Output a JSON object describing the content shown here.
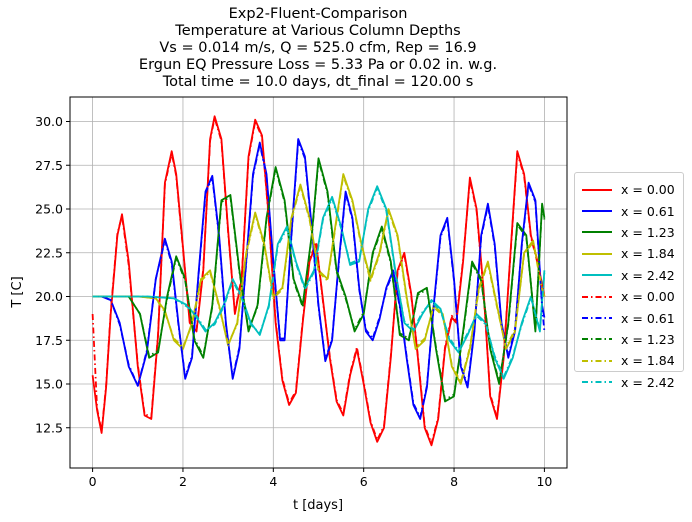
{
  "chart_data": {
    "type": "line",
    "title_lines": [
      "Exp2-Fluent-Comparison",
      "Temperature at Various Column Depths",
      "Vs = 0.014 m/s, Q = 525.0 cfm, Rep = 16.9",
      "Ergun EQ Pressure Loss = 5.33 Pa or 0.02 in. w.g.",
      "Total time = 10.0 days, dt_final = 120.00 s"
    ],
    "xlabel": "t [days]",
    "ylabel": "T [C]",
    "xlim": [
      -0.5,
      10.5
    ],
    "ylim": [
      10.2,
      31.4
    ],
    "xticks": [
      0,
      2,
      4,
      6,
      8,
      10
    ],
    "xtick_labels": [
      "0",
      "2",
      "4",
      "6",
      "8",
      "10"
    ],
    "yticks": [
      12.5,
      15.0,
      17.5,
      20.0,
      22.5,
      25.0,
      27.5,
      30.0
    ],
    "ytick_labels": [
      "12.5",
      "15.0",
      "17.5",
      "20.0",
      "22.5",
      "25.0",
      "27.5",
      "30.0"
    ],
    "grid": true,
    "legend_position": "center-right-outside",
    "series": [
      {
        "name": "x = 0.00",
        "color": "#ff0000",
        "style": "solid",
        "x": [
          0.0,
          0.1,
          0.2,
          0.3,
          0.4,
          0.55,
          0.65,
          0.8,
          1.0,
          1.15,
          1.3,
          1.45,
          1.6,
          1.75,
          1.85,
          2.0,
          2.15,
          2.3,
          2.45,
          2.6,
          2.7,
          2.85,
          3.0,
          3.15,
          3.3,
          3.45,
          3.6,
          3.75,
          3.9,
          4.05,
          4.2,
          4.35,
          4.5,
          4.65,
          4.8,
          4.95,
          5.1,
          5.25,
          5.4,
          5.55,
          5.7,
          5.85,
          6.0,
          6.15,
          6.3,
          6.45,
          6.6,
          6.75,
          6.9,
          7.05,
          7.2,
          7.35,
          7.5,
          7.65,
          7.8,
          7.95,
          8.05,
          8.2,
          8.35,
          8.5,
          8.65,
          8.8,
          8.95,
          9.1,
          9.25,
          9.4,
          9.55,
          9.7,
          9.85,
          10.0
        ],
        "y": [
          15.5,
          13.5,
          12.2,
          14.8,
          19.0,
          23.5,
          24.7,
          22.0,
          16.0,
          13.2,
          13.0,
          17.8,
          26.5,
          28.3,
          27.0,
          22.8,
          18.5,
          18.0,
          21.5,
          29.0,
          30.3,
          29.0,
          23.8,
          19.0,
          21.0,
          28.0,
          30.1,
          29.2,
          24.5,
          18.5,
          15.2,
          13.8,
          14.5,
          18.5,
          22.0,
          23.0,
          19.8,
          16.5,
          14.0,
          13.2,
          15.5,
          17.0,
          15.0,
          12.8,
          11.7,
          12.5,
          16.5,
          21.5,
          22.5,
          20.2,
          16.5,
          12.5,
          11.5,
          13.0,
          17.0,
          18.8,
          18.5,
          22.0,
          26.8,
          25.0,
          20.5,
          14.3,
          13.0,
          16.5,
          22.5,
          28.3,
          27.0,
          23.5,
          22.0,
          20.0
        ]
      },
      {
        "name": "x = 0.61",
        "color": "#0000ff",
        "style": "solid",
        "x": [
          0.0,
          0.2,
          0.4,
          0.6,
          0.8,
          1.0,
          1.2,
          1.4,
          1.6,
          1.75,
          1.9,
          2.05,
          2.2,
          2.35,
          2.5,
          2.65,
          2.8,
          2.95,
          3.1,
          3.25,
          3.4,
          3.55,
          3.7,
          3.85,
          4.0,
          4.15,
          4.25,
          4.4,
          4.55,
          4.7,
          4.85,
          5.0,
          5.15,
          5.3,
          5.45,
          5.6,
          5.75,
          5.9,
          6.05,
          6.2,
          6.35,
          6.5,
          6.65,
          6.8,
          6.95,
          7.1,
          7.25,
          7.4,
          7.55,
          7.7,
          7.85,
          8.0,
          8.15,
          8.3,
          8.45,
          8.6,
          8.75,
          8.9,
          9.05,
          9.2,
          9.35,
          9.5,
          9.65,
          9.8,
          9.95,
          10.0
        ],
        "y": [
          20.0,
          20.0,
          19.8,
          18.5,
          16.0,
          14.9,
          16.8,
          21.0,
          23.3,
          22.0,
          18.5,
          15.3,
          16.5,
          21.5,
          26.0,
          26.9,
          23.5,
          18.5,
          15.3,
          17.0,
          22.0,
          27.0,
          28.8,
          27.0,
          22.0,
          17.5,
          17.5,
          23.5,
          29.0,
          28.0,
          24.0,
          19.5,
          16.3,
          17.5,
          22.0,
          26.0,
          24.5,
          20.5,
          18.0,
          17.5,
          18.7,
          20.5,
          21.5,
          19.5,
          16.5,
          13.8,
          13.0,
          14.8,
          19.5,
          23.5,
          24.5,
          21.0,
          16.0,
          14.8,
          18.0,
          23.5,
          25.3,
          23.0,
          18.5,
          16.5,
          18.0,
          23.0,
          26.5,
          25.5,
          19.5,
          18.8
        ]
      },
      {
        "name": "x = 1.23",
        "color": "#008000",
        "style": "solid",
        "x": [
          0.0,
          0.4,
          0.8,
          1.05,
          1.25,
          1.45,
          1.65,
          1.85,
          2.05,
          2.25,
          2.45,
          2.65,
          2.85,
          3.05,
          3.25,
          3.45,
          3.65,
          3.85,
          4.05,
          4.25,
          4.45,
          4.65,
          4.85,
          5.0,
          5.2,
          5.4,
          5.6,
          5.8,
          6.0,
          6.2,
          6.4,
          6.6,
          6.8,
          7.0,
          7.2,
          7.4,
          7.6,
          7.8,
          8.0,
          8.2,
          8.4,
          8.6,
          8.8,
          9.0,
          9.2,
          9.4,
          9.6,
          9.8,
          9.95,
          10.0
        ],
        "y": [
          20.0,
          20.0,
          20.0,
          19.0,
          16.5,
          16.8,
          20.0,
          22.3,
          21.0,
          17.5,
          16.5,
          19.5,
          25.5,
          25.8,
          21.5,
          18.0,
          19.5,
          24.5,
          27.4,
          25.5,
          21.0,
          19.5,
          23.5,
          27.9,
          26.0,
          21.5,
          20.0,
          18.0,
          19.0,
          22.5,
          24.0,
          22.0,
          17.8,
          17.5,
          20.2,
          20.5,
          17.0,
          14.0,
          14.3,
          18.0,
          22.0,
          21.0,
          17.0,
          15.0,
          18.5,
          24.2,
          23.5,
          18.0,
          25.3,
          24.5
        ]
      },
      {
        "name": "x = 1.84",
        "color": "#bfbf00",
        "style": "solid",
        "x": [
          0.0,
          0.5,
          1.0,
          1.4,
          1.6,
          1.8,
          2.0,
          2.2,
          2.4,
          2.6,
          2.8,
          3.0,
          3.2,
          3.4,
          3.6,
          3.8,
          4.0,
          4.2,
          4.4,
          4.6,
          4.8,
          5.0,
          5.2,
          5.4,
          5.55,
          5.75,
          5.95,
          6.15,
          6.35,
          6.55,
          6.75,
          6.95,
          7.15,
          7.35,
          7.55,
          7.75,
          7.95,
          8.15,
          8.35,
          8.55,
          8.75,
          8.95,
          9.15,
          9.35,
          9.55,
          9.75,
          9.95,
          10.0
        ],
        "y": [
          20.0,
          20.0,
          20.0,
          19.9,
          19.2,
          17.5,
          17.0,
          18.5,
          21.0,
          21.5,
          19.5,
          17.2,
          18.5,
          22.5,
          24.8,
          23.0,
          20.0,
          20.5,
          24.5,
          26.4,
          24.5,
          21.5,
          21.0,
          24.5,
          27.0,
          25.5,
          23.0,
          21.0,
          22.5,
          25.0,
          23.5,
          20.0,
          17.0,
          17.5,
          19.5,
          19.0,
          16.0,
          15.0,
          17.0,
          20.5,
          22.0,
          19.5,
          17.0,
          18.0,
          22.5,
          23.2,
          20.5,
          20.0
        ]
      },
      {
        "name": "x = 2.42",
        "color": "#00bfbf",
        "style": "solid",
        "x": [
          0.0,
          0.6,
          1.2,
          1.8,
          2.1,
          2.3,
          2.5,
          2.7,
          2.9,
          3.1,
          3.3,
          3.5,
          3.7,
          3.9,
          4.1,
          4.3,
          4.5,
          4.7,
          4.9,
          5.1,
          5.3,
          5.5,
          5.7,
          5.9,
          6.1,
          6.3,
          6.5,
          6.7,
          6.9,
          7.1,
          7.3,
          7.5,
          7.7,
          7.9,
          8.1,
          8.3,
          8.5,
          8.7,
          8.9,
          9.1,
          9.3,
          9.5,
          9.7,
          9.9,
          10.0
        ],
        "y": [
          20.0,
          20.0,
          20.0,
          19.9,
          19.5,
          18.8,
          18.0,
          18.5,
          19.5,
          21.0,
          20.0,
          18.5,
          17.8,
          19.5,
          23.0,
          24.0,
          22.0,
          20.5,
          21.5,
          24.5,
          25.7,
          24.0,
          21.8,
          22.0,
          25.0,
          26.3,
          25.0,
          21.5,
          18.5,
          18.0,
          19.0,
          19.8,
          19.3,
          17.5,
          16.8,
          17.8,
          19.0,
          18.5,
          16.5,
          15.3,
          16.5,
          18.5,
          20.0,
          18.0,
          21.5
        ]
      },
      {
        "name": "x = 0.00",
        "color": "#ff0000",
        "style": "dashdot",
        "x": [
          0.0,
          0.1,
          0.2,
          0.3,
          0.4,
          0.55,
          0.65,
          0.8,
          1.0,
          1.15,
          1.3,
          1.45,
          1.6,
          1.75,
          1.85,
          2.0,
          2.15,
          2.3,
          2.45,
          2.6,
          2.7,
          2.85,
          3.0,
          3.15,
          3.3,
          3.45,
          3.6,
          3.75,
          3.9,
          4.05,
          4.2,
          4.35,
          4.5,
          4.65,
          4.8,
          4.95,
          5.1,
          5.25,
          5.4,
          5.55,
          5.7,
          5.85,
          6.0,
          6.15,
          6.3,
          6.45,
          6.6,
          6.75,
          6.9,
          7.05,
          7.2,
          7.35,
          7.5,
          7.65,
          7.8,
          7.95,
          8.05,
          8.2,
          8.35,
          8.5,
          8.65,
          8.8,
          8.95,
          9.1,
          9.25,
          9.4,
          9.55,
          9.7,
          9.85,
          10.0
        ],
        "y": [
          19.0,
          13.6,
          12.3,
          14.9,
          19.1,
          23.6,
          24.6,
          21.8,
          16.1,
          13.3,
          13.1,
          17.9,
          26.4,
          28.2,
          26.9,
          22.7,
          18.6,
          18.1,
          21.6,
          28.9,
          30.2,
          28.9,
          23.7,
          19.1,
          21.1,
          27.9,
          30.0,
          29.1,
          24.4,
          18.6,
          15.3,
          13.9,
          14.6,
          18.6,
          22.1,
          23.1,
          19.7,
          16.6,
          14.1,
          13.3,
          15.6,
          17.1,
          15.1,
          12.9,
          11.8,
          12.6,
          16.6,
          21.4,
          22.4,
          20.1,
          16.6,
          12.6,
          11.6,
          13.1,
          17.1,
          18.9,
          18.6,
          22.1,
          26.7,
          24.9,
          20.4,
          14.4,
          13.1,
          16.6,
          22.4,
          28.2,
          26.9,
          23.4,
          21.9,
          20.0
        ]
      },
      {
        "name": "x = 0.61",
        "color": "#0000ff",
        "style": "dashdot",
        "x": [
          0.0,
          0.2,
          0.4,
          0.6,
          0.8,
          1.0,
          1.2,
          1.4,
          1.6,
          1.75,
          1.9,
          2.05,
          2.2,
          2.35,
          2.5,
          2.65,
          2.8,
          2.95,
          3.1,
          3.25,
          3.4,
          3.55,
          3.7,
          3.85,
          4.0,
          4.15,
          4.25,
          4.4,
          4.55,
          4.7,
          4.85,
          5.0,
          5.15,
          5.3,
          5.45,
          5.6,
          5.75,
          5.9,
          6.05,
          6.2,
          6.35,
          6.5,
          6.65,
          6.8,
          6.95,
          7.1,
          7.25,
          7.4,
          7.55,
          7.7,
          7.85,
          8.0,
          8.15,
          8.3,
          8.45,
          8.6,
          8.75,
          8.9,
          9.05,
          9.2,
          9.35,
          9.5,
          9.65,
          9.8,
          9.95,
          10.0
        ],
        "y": [
          20.0,
          20.0,
          19.8,
          18.4,
          16.1,
          14.9,
          16.9,
          21.0,
          23.2,
          21.9,
          18.4,
          15.4,
          16.6,
          21.4,
          25.9,
          26.8,
          23.4,
          18.4,
          15.4,
          17.1,
          21.9,
          26.9,
          28.7,
          26.9,
          21.9,
          17.6,
          17.6,
          23.4,
          28.9,
          27.9,
          23.9,
          19.4,
          16.4,
          17.6,
          21.9,
          25.9,
          24.4,
          20.4,
          18.1,
          17.6,
          18.8,
          20.4,
          21.4,
          19.4,
          16.6,
          13.9,
          13.1,
          14.9,
          19.4,
          23.4,
          24.4,
          20.9,
          16.1,
          14.9,
          18.1,
          23.4,
          25.2,
          22.9,
          18.4,
          16.6,
          18.1,
          22.9,
          26.4,
          25.4,
          19.4,
          18.0
        ]
      },
      {
        "name": "x = 1.23",
        "color": "#008000",
        "style": "dashdot",
        "x": [
          0.0,
          0.4,
          0.8,
          1.05,
          1.25,
          1.45,
          1.65,
          1.85,
          2.05,
          2.25,
          2.45,
          2.65,
          2.85,
          3.05,
          3.25,
          3.45,
          3.65,
          3.85,
          4.05,
          4.25,
          4.45,
          4.65,
          4.85,
          5.0,
          5.2,
          5.4,
          5.6,
          5.8,
          6.0,
          6.2,
          6.4,
          6.6,
          6.8,
          7.0,
          7.2,
          7.4,
          7.6,
          7.8,
          8.0,
          8.2,
          8.4,
          8.6,
          8.8,
          9.0,
          9.2,
          9.4,
          9.6,
          9.8,
          9.95,
          10.0
        ],
        "y": [
          20.0,
          20.0,
          20.0,
          19.0,
          16.6,
          16.9,
          19.9,
          22.2,
          20.9,
          17.6,
          16.6,
          19.4,
          25.4,
          25.7,
          21.4,
          18.1,
          19.4,
          24.4,
          27.3,
          25.4,
          20.9,
          19.4,
          23.4,
          27.8,
          25.9,
          21.4,
          19.9,
          18.1,
          19.1,
          22.4,
          23.9,
          21.9,
          17.9,
          17.6,
          20.1,
          20.4,
          17.1,
          14.1,
          14.4,
          17.9,
          21.9,
          20.9,
          17.1,
          15.1,
          18.4,
          24.1,
          23.4,
          18.1,
          25.2,
          24.4
        ]
      },
      {
        "name": "x = 1.84",
        "color": "#bfbf00",
        "style": "dashdot",
        "x": [
          0.0,
          0.5,
          1.0,
          1.4,
          1.6,
          1.8,
          2.0,
          2.2,
          2.4,
          2.6,
          2.8,
          3.0,
          3.2,
          3.4,
          3.6,
          3.8,
          4.0,
          4.2,
          4.4,
          4.6,
          4.8,
          5.0,
          5.2,
          5.4,
          5.55,
          5.75,
          5.95,
          6.15,
          6.35,
          6.55,
          6.75,
          6.95,
          7.15,
          7.35,
          7.55,
          7.75,
          7.95,
          8.15,
          8.35,
          8.55,
          8.75,
          8.95,
          9.15,
          9.35,
          9.55,
          9.75,
          9.95,
          10.0
        ],
        "y": [
          20.0,
          20.0,
          20.0,
          19.9,
          19.1,
          17.6,
          17.1,
          18.4,
          20.9,
          21.4,
          19.4,
          17.3,
          18.4,
          22.4,
          24.7,
          22.9,
          19.9,
          20.4,
          24.4,
          26.3,
          24.4,
          21.4,
          20.9,
          24.4,
          26.9,
          25.4,
          22.9,
          20.9,
          22.4,
          24.9,
          23.4,
          19.9,
          17.1,
          17.6,
          19.4,
          18.9,
          16.1,
          15.1,
          17.1,
          20.4,
          21.9,
          19.4,
          17.1,
          18.1,
          22.4,
          23.1,
          20.4,
          20.0
        ]
      },
      {
        "name": "x = 2.42",
        "color": "#00bfbf",
        "style": "dashdot",
        "x": [
          0.0,
          0.6,
          1.2,
          1.8,
          2.1,
          2.3,
          2.5,
          2.7,
          2.9,
          3.1,
          3.3,
          3.5,
          3.7,
          3.9,
          4.1,
          4.3,
          4.5,
          4.7,
          4.9,
          5.1,
          5.3,
          5.5,
          5.7,
          5.9,
          6.1,
          6.3,
          6.5,
          6.7,
          6.9,
          7.1,
          7.3,
          7.5,
          7.7,
          7.9,
          8.1,
          8.3,
          8.5,
          8.7,
          8.9,
          9.1,
          9.3,
          9.5,
          9.7,
          9.9,
          10.0
        ],
        "y": [
          20.0,
          20.0,
          20.0,
          19.9,
          19.4,
          18.9,
          18.1,
          18.4,
          19.4,
          20.9,
          19.9,
          18.4,
          17.9,
          19.4,
          22.9,
          23.9,
          21.9,
          20.4,
          21.4,
          24.4,
          25.6,
          23.9,
          21.9,
          22.1,
          24.9,
          26.2,
          24.9,
          21.4,
          18.6,
          18.1,
          19.1,
          19.7,
          19.2,
          17.6,
          16.9,
          17.9,
          18.9,
          18.4,
          16.6,
          15.4,
          16.6,
          18.4,
          19.9,
          18.1,
          21.4
        ]
      }
    ]
  }
}
